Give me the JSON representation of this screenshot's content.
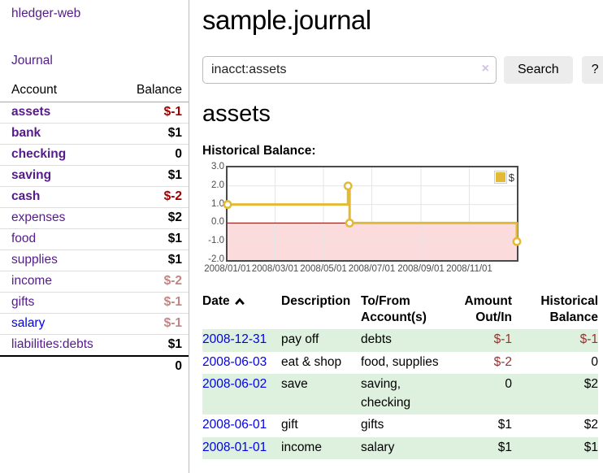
{
  "sidebar": {
    "app_title": "hledger-web",
    "nav": {
      "journal": "Journal"
    },
    "table": {
      "account_header": "Account",
      "balance_header": "Balance"
    },
    "accounts": [
      {
        "name": "assets",
        "balance": "$-1"
      },
      {
        "name": "bank",
        "balance": "$1"
      },
      {
        "name": "checking",
        "balance": "0"
      },
      {
        "name": "saving",
        "balance": "$1"
      },
      {
        "name": "cash",
        "balance": "$-2"
      },
      {
        "name": "expenses",
        "balance": "$2"
      },
      {
        "name": "food",
        "balance": "$1"
      },
      {
        "name": "supplies",
        "balance": "$1"
      },
      {
        "name": "income",
        "balance": "$-2"
      },
      {
        "name": "gifts",
        "balance": "$-1"
      },
      {
        "name": "salary",
        "balance": "$-1"
      },
      {
        "name": "liabilities:debts",
        "balance": "$1"
      }
    ],
    "total": "0"
  },
  "main": {
    "title": "sample.journal",
    "search": {
      "query": "inacct:assets",
      "clear_icon": "×",
      "button": "Search",
      "help_button": "?"
    },
    "account_heading": "assets"
  },
  "chart_data": {
    "type": "line",
    "step": true,
    "title": "Historical Balance:",
    "series": [
      {
        "name": "$",
        "color": "#e3ba35",
        "points": [
          {
            "x": "2008-01-01",
            "y": 1
          },
          {
            "x": "2008-06-01",
            "y": 2
          },
          {
            "x": "2008-06-03",
            "y": 0
          },
          {
            "x": "2008-12-31",
            "y": -1
          }
        ]
      }
    ],
    "x_range": [
      "2008-01-01",
      "2008-12-31"
    ],
    "ylim": [
      -2,
      3
    ],
    "yticks": [
      {
        "v": 3,
        "label": "3.0"
      },
      {
        "v": 2,
        "label": "2.0"
      },
      {
        "v": 1,
        "label": "1.0"
      },
      {
        "v": 0,
        "label": "0.0"
      },
      {
        "v": -1,
        "label": "-1.0"
      },
      {
        "v": -2,
        "label": "-2.0"
      }
    ],
    "xticks": [
      {
        "x": "2008-01-01",
        "label": "2008/01/01"
      },
      {
        "x": "2008-03-01",
        "label": "2008/03/01"
      },
      {
        "x": "2008-05-01",
        "label": "2008/05/01"
      },
      {
        "x": "2008-07-01",
        "label": "2008/07/01"
      },
      {
        "x": "2008-09-01",
        "label": "2008/09/01"
      },
      {
        "x": "2008-11-01",
        "label": "2008/11/01"
      }
    ],
    "grid": true,
    "legend_position": "top-right",
    "grid_color": "#e6e6e6",
    "zero_line_color": "#8b0000",
    "negative_region_color": "#fbdbdb",
    "point_style": {
      "fill": "#ffffff",
      "radius": 4.2
    }
  },
  "register": {
    "columns": [
      {
        "line1": "Date",
        "line2": ""
      },
      {
        "line1": "Description",
        "line2": ""
      },
      {
        "line1": "To/From",
        "line2": "Account(s)"
      },
      {
        "line1": "Amount",
        "line2": "Out/In"
      },
      {
        "line1": "Historical",
        "line2": "Balance"
      }
    ],
    "rows": [
      {
        "date": "2008-12-31",
        "description": "pay off",
        "accounts": "debts",
        "amount": "$-1",
        "balance": "$-1"
      },
      {
        "date": "2008-06-03",
        "description": "eat & shop",
        "accounts": "food, supplies",
        "amount": "$-2",
        "balance": "0"
      },
      {
        "date": "2008-06-02",
        "description": "save",
        "accounts": "saving, checking",
        "amount": "0",
        "balance": "$2"
      },
      {
        "date": "2008-06-01",
        "description": "gift",
        "accounts": "gifts",
        "amount": "$1",
        "balance": "$2"
      },
      {
        "date": "2008-01-01",
        "description": "income",
        "accounts": "salary",
        "amount": "$1",
        "balance": "$1"
      }
    ]
  }
}
